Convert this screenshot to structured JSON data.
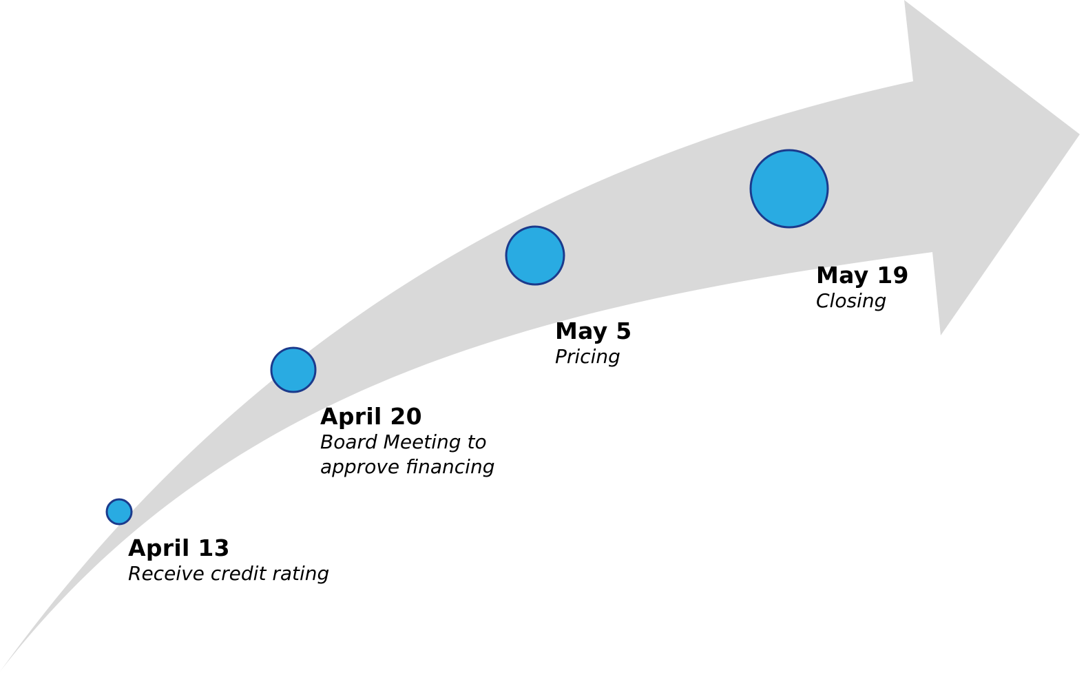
{
  "timeline": {
    "arrow_color": "#d9d9d9",
    "marker_fill": "#29abe2",
    "marker_stroke": "#1b3a8c",
    "milestones": [
      {
        "date": "April 13",
        "description": "Receive credit rating"
      },
      {
        "date": "April 20",
        "description": "Board Meeting to\napprove financing"
      },
      {
        "date": "May 5",
        "description": "Pricing"
      },
      {
        "date": "May 19",
        "description": "Closing"
      }
    ]
  }
}
